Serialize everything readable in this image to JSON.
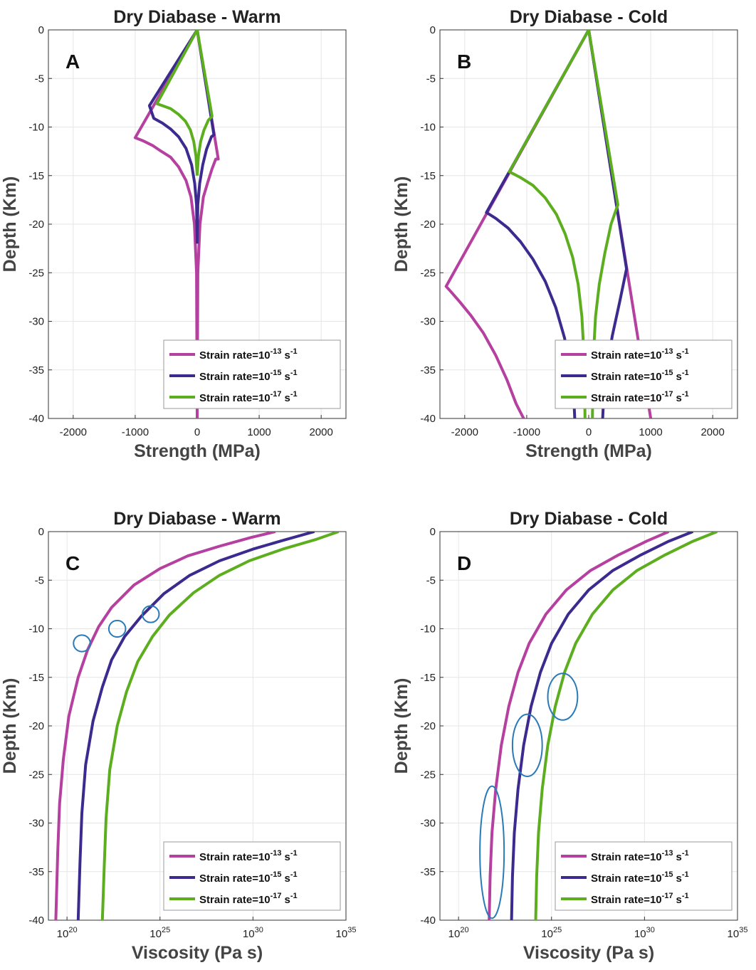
{
  "chart_data": [
    {
      "id": "A",
      "type": "line",
      "title": "Dry Diabase - Warm",
      "panel_label": "A",
      "xlabel": "Strength (MPa)",
      "ylabel": "Depth (Km)",
      "xlim": [
        -2400,
        2400
      ],
      "ylim": [
        -40,
        0
      ],
      "x_ticks": [
        -2000,
        -1000,
        0,
        1000,
        2000
      ],
      "x_tick_labels": [
        "-2000",
        "-1000",
        "0",
        "1000",
        "2000"
      ],
      "y_ticks": [
        0,
        -5,
        -10,
        -15,
        -20,
        -25,
        -30,
        -35,
        -40
      ],
      "y_tick_labels": [
        "0",
        "-5",
        "-10",
        "-15",
        "-20",
        "-25",
        "-30",
        "-35",
        "-40"
      ],
      "grid": true,
      "legend_position": "bottom-right",
      "series": [
        {
          "name": "Strain rate=10^-13 s^-1",
          "label_base": "Strain rate=10",
          "label_exp": "-13",
          "label_unit": "s",
          "label_unit_exp": "-1",
          "color": "#b5409f",
          "x": [
            0,
            -1000,
            -880,
            -720,
            -580,
            -430,
            -300,
            -180,
            -100,
            -45,
            -10,
            0,
            null,
            0,
            10,
            45,
            100,
            170,
            240,
            300,
            340,
            0
          ],
          "y": [
            0,
            -11.1,
            -11.4,
            -11.9,
            -12.5,
            -13.1,
            -14.1,
            -15.5,
            -17.2,
            -20,
            -25,
            -40,
            null,
            -40,
            -25,
            -20,
            -17.2,
            -15.7,
            -14.3,
            -13.3,
            -13.3,
            0
          ]
        },
        {
          "name": "Strain rate=10^-15 s^-1",
          "label_base": "Strain rate=10",
          "label_exp": "-15",
          "label_unit": "s",
          "label_unit_exp": "-1",
          "color": "#3d2a8f",
          "x": [
            0,
            -770,
            -700,
            -560,
            -430,
            -300,
            -180,
            -90,
            -40,
            -10,
            0,
            null,
            0,
            10,
            40,
            90,
            150,
            230,
            270,
            0
          ],
          "y": [
            0,
            -7.8,
            -9.1,
            -9.6,
            -10.2,
            -11.0,
            -12.2,
            -13.9,
            -15.8,
            -18,
            -22,
            null,
            -22,
            -18,
            -15.8,
            -13.9,
            -12.3,
            -11.0,
            -10.8,
            0
          ]
        },
        {
          "name": "Strain rate=10^-17 s^-1",
          "label_base": "Strain rate=10",
          "label_exp": "-17",
          "label_unit": "s",
          "label_unit_exp": "-1",
          "color": "#5cae1f",
          "x": [
            0,
            -650,
            -560,
            -430,
            -300,
            -190,
            -110,
            -55,
            -20,
            0,
            null,
            0,
            20,
            55,
            110,
            180,
            240,
            0
          ],
          "y": [
            0,
            -7.6,
            -7.8,
            -8.1,
            -8.7,
            -9.4,
            -10.3,
            -11.5,
            -13,
            -15,
            null,
            -15,
            -13,
            -11.5,
            -10.3,
            -9.3,
            -8.9,
            0
          ]
        }
      ]
    },
    {
      "id": "B",
      "type": "line",
      "title": "Dry Diabase - Cold",
      "panel_label": "B",
      "xlabel": "Strength (MPa)",
      "ylabel": "Depth (Km)",
      "xlim": [
        -2400,
        2400
      ],
      "ylim": [
        -40,
        0
      ],
      "x_ticks": [
        -2000,
        -1000,
        0,
        1000,
        2000
      ],
      "x_tick_labels": [
        "-2000",
        "-1000",
        "0",
        "1000",
        "2000"
      ],
      "y_ticks": [
        0,
        -5,
        -10,
        -15,
        -20,
        -25,
        -30,
        -35,
        -40
      ],
      "y_tick_labels": [
        "0",
        "-5",
        "-10",
        "-15",
        "-20",
        "-25",
        "-30",
        "-35",
        "-40"
      ],
      "grid": true,
      "legend_position": "bottom-right",
      "series": [
        {
          "name": "Strain rate=10^-13 s^-1",
          "label_base": "Strain rate=10",
          "label_exp": "-13",
          "label_unit": "s",
          "label_unit_exp": "-1",
          "color": "#b5409f",
          "x": [
            0,
            -2300,
            -2230,
            -2080,
            -1900,
            -1700,
            -1500,
            -1320,
            -1170,
            -1050,
            null,
            1000,
            0
          ],
          "y": [
            0,
            -26.4,
            -26.9,
            -28.0,
            -29.4,
            -31.2,
            -33.5,
            -36.0,
            -38.5,
            -40,
            null,
            -40,
            0
          ]
        },
        {
          "name": "Strain rate=10^-15 s^-1",
          "label_base": "Strain rate=10",
          "label_exp": "-15",
          "label_unit": "s",
          "label_unit_exp": "-1",
          "color": "#3d2a8f",
          "x": [
            0,
            -1650,
            -1500,
            -1300,
            -1100,
            -900,
            -700,
            -530,
            -390,
            -290,
            -240,
            -225,
            null,
            225,
            240,
            290,
            380,
            500,
            610,
            0
          ],
          "y": [
            0,
            -18.8,
            -19.4,
            -20.4,
            -21.8,
            -23.6,
            -25.9,
            -28.6,
            -31.7,
            -35.0,
            -38.0,
            -40,
            null,
            -40,
            -38.0,
            -35.0,
            -31.5,
            -28.0,
            -24.6,
            0
          ]
        },
        {
          "name": "Strain rate=10^-17 s^-1",
          "label_base": "Strain rate=10",
          "label_exp": "-17",
          "label_unit": "s",
          "label_unit_exp": "-1",
          "color": "#5cae1f",
          "x": [
            0,
            -1280,
            -1100,
            -900,
            -700,
            -520,
            -380,
            -260,
            -170,
            -110,
            -80,
            -65,
            -60,
            null,
            60,
            65,
            80,
            110,
            170,
            260,
            360,
            470,
            0
          ],
          "y": [
            0,
            -14.6,
            -15.2,
            -16.0,
            -17.3,
            -19.0,
            -21.0,
            -23.4,
            -26.2,
            -29.5,
            -33,
            -37,
            -40,
            null,
            -40,
            -37,
            -33,
            -29.5,
            -26.2,
            -23.0,
            -20.0,
            -18.0,
            0
          ]
        }
      ]
    },
    {
      "id": "C",
      "type": "line",
      "title": "Dry Diabase - Warm",
      "panel_label": "C",
      "xlabel": "Viscosity (Pa s)",
      "ylabel": "Depth (Km)",
      "x_scale": "log10",
      "xlim": [
        19,
        35
      ],
      "ylim": [
        -40,
        0
      ],
      "x_ticks": [
        20,
        25,
        30,
        35
      ],
      "x_tick_labels": [
        "20",
        "25",
        "30",
        "35"
      ],
      "x_tick_base": "10",
      "y_ticks": [
        0,
        -5,
        -10,
        -15,
        -20,
        -25,
        -30,
        -35,
        -40
      ],
      "y_tick_labels": [
        "0",
        "-5",
        "-10",
        "-15",
        "-20",
        "-25",
        "-30",
        "-35",
        "-40"
      ],
      "grid": true,
      "legend_position": "bottom-right",
      "series": [
        {
          "name": "Strain rate=10^-13 s^-1",
          "label_base": "Strain rate=10",
          "label_exp": "-13",
          "label_unit": "s",
          "label_unit_exp": "-1",
          "color": "#b5409f",
          "x": [
            31.2,
            29.9,
            28.2,
            26.5,
            25.0,
            23.6,
            22.4,
            21.7,
            21.1,
            20.6,
            20.1,
            19.8,
            19.6,
            19.5,
            19.4
          ],
          "y": [
            0,
            -0.6,
            -1.5,
            -2.5,
            -3.8,
            -5.5,
            -7.8,
            -9.8,
            -12.2,
            -15,
            -19,
            -23.5,
            -28,
            -33,
            -40
          ]
        },
        {
          "name": "Strain rate=10^-15 s^-1",
          "label_base": "Strain rate=10",
          "label_exp": "-15",
          "label_unit": "s",
          "label_unit_exp": "-1",
          "color": "#3d2a8f",
          "x": [
            33.3,
            31.8,
            30.0,
            28.2,
            26.6,
            25.2,
            24.0,
            23.1,
            22.4,
            21.9,
            21.4,
            21.0,
            20.8,
            20.7,
            20.6
          ],
          "y": [
            0,
            -0.8,
            -1.8,
            -3.0,
            -4.5,
            -6.4,
            -8.7,
            -10.8,
            -13.2,
            -16,
            -19.5,
            -24,
            -29,
            -34,
            -40
          ]
        },
        {
          "name": "Strain rate=10^-17 s^-1",
          "label_base": "Strain rate=10",
          "label_exp": "-17",
          "label_unit": "s",
          "label_unit_exp": "-1",
          "color": "#5cae1f",
          "x": [
            34.6,
            33.4,
            31.6,
            29.8,
            28.2,
            26.8,
            25.5,
            24.6,
            23.8,
            23.2,
            22.7,
            22.3,
            22.1,
            22.0,
            21.9
          ],
          "y": [
            0,
            -0.8,
            -1.8,
            -3.0,
            -4.5,
            -6.3,
            -8.6,
            -10.8,
            -13.4,
            -16.5,
            -20,
            -24.5,
            -29.5,
            -34.5,
            -40
          ]
        }
      ],
      "annotations": [
        {
          "cx": 20.8,
          "cy": -11.5,
          "rx": 0.45,
          "ry": 0.85
        },
        {
          "cx": 22.7,
          "cy": -10.0,
          "rx": 0.45,
          "ry": 0.85
        },
        {
          "cx": 24.5,
          "cy": -8.5,
          "rx": 0.45,
          "ry": 0.85
        }
      ]
    },
    {
      "id": "D",
      "type": "line",
      "title": "Dry Diabase - Cold",
      "panel_label": "D",
      "xlabel": "Viscosity (Pa s)",
      "ylabel": "Depth (Km)",
      "x_scale": "log10",
      "xlim": [
        19,
        35
      ],
      "ylim": [
        -40,
        0
      ],
      "x_ticks": [
        20,
        25,
        30,
        35
      ],
      "x_tick_labels": [
        "20",
        "25",
        "30",
        "35"
      ],
      "x_tick_base": "10",
      "y_ticks": [
        0,
        -5,
        -10,
        -15,
        -20,
        -25,
        -30,
        -35,
        -40
      ],
      "y_tick_labels": [
        "0",
        "-5",
        "-10",
        "-15",
        "-20",
        "-25",
        "-30",
        "-35",
        "-40"
      ],
      "grid": true,
      "legend_position": "bottom-right",
      "series": [
        {
          "name": "Strain rate=10^-13 s^-1",
          "label_base": "Strain rate=10",
          "label_exp": "-13",
          "label_unit": "s",
          "label_unit_exp": "-1",
          "color": "#b5409f",
          "x": [
            31.3,
            30.1,
            28.6,
            27.1,
            25.8,
            24.7,
            23.8,
            23.2,
            22.7,
            22.3,
            22.0,
            21.8,
            21.7,
            21.65
          ],
          "y": [
            0,
            -1.0,
            -2.4,
            -4.0,
            -6.0,
            -8.5,
            -11.5,
            -14.5,
            -18,
            -22,
            -26.5,
            -31,
            -35.5,
            -40
          ]
        },
        {
          "name": "Strain rate=10^-15 s^-1",
          "label_base": "Strain rate=10",
          "label_exp": "-15",
          "label_unit": "s",
          "label_unit_exp": "-1",
          "color": "#3d2a8f",
          "x": [
            32.6,
            31.3,
            29.8,
            28.3,
            27.0,
            25.9,
            25.0,
            24.4,
            23.9,
            23.5,
            23.2,
            23.0,
            22.9,
            22.85
          ],
          "y": [
            0,
            -1.0,
            -2.4,
            -4.0,
            -6.0,
            -8.5,
            -11.5,
            -14.5,
            -18,
            -22,
            -26.5,
            -31,
            -35.5,
            -40
          ]
        },
        {
          "name": "Strain rate=10^-17 s^-1",
          "label_base": "Strain rate=10",
          "label_exp": "-17",
          "label_unit": "s",
          "label_unit_exp": "-1",
          "color": "#5cae1f",
          "x": [
            33.9,
            32.6,
            31.1,
            29.6,
            28.3,
            27.2,
            26.3,
            25.7,
            25.2,
            24.8,
            24.5,
            24.3,
            24.2,
            24.15
          ],
          "y": [
            0,
            -1.0,
            -2.4,
            -4.0,
            -6.0,
            -8.5,
            -11.5,
            -14.5,
            -18,
            -22,
            -26.5,
            -31,
            -35.5,
            -40
          ]
        }
      ],
      "annotations": [
        {
          "cx": 21.8,
          "cy": -33.0,
          "rx": 0.65,
          "ry": 6.8
        },
        {
          "cx": 23.7,
          "cy": -22.0,
          "rx": 0.8,
          "ry": 3.2
        },
        {
          "cx": 25.6,
          "cy": -17.0,
          "rx": 0.8,
          "ry": 2.4
        }
      ]
    }
  ]
}
